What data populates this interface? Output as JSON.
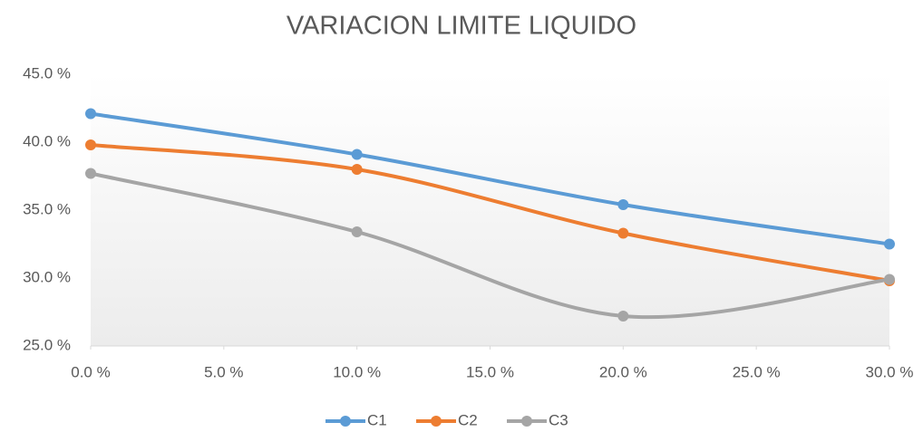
{
  "chart_data": {
    "type": "line",
    "title": "VARIACION LIMITE LIQUIDO",
    "x": [
      0,
      10,
      20,
      30
    ],
    "series": [
      {
        "name": "C1",
        "color": "#5b9bd5",
        "values": [
          42.1,
          39.1,
          35.4,
          32.5
        ]
      },
      {
        "name": "C2",
        "color": "#ed7d31",
        "values": [
          39.8,
          38.0,
          33.3,
          29.8
        ]
      },
      {
        "name": "C3",
        "color": "#a5a5a5",
        "values": [
          37.7,
          33.4,
          27.2,
          29.9
        ]
      }
    ],
    "xlim": [
      0,
      30
    ],
    "xticks": [
      {
        "value": 0,
        "label": "0.0 %"
      },
      {
        "value": 5,
        "label": "5.0 %"
      },
      {
        "value": 10,
        "label": "10.0 %"
      },
      {
        "value": 15,
        "label": "15.0 %"
      },
      {
        "value": 20,
        "label": "20.0 %"
      },
      {
        "value": 25,
        "label": "25.0 %"
      },
      {
        "value": 30,
        "label": "30.0 %"
      }
    ],
    "ylim": [
      25,
      45
    ],
    "yticks": [
      {
        "value": 25,
        "label": "25.0 %"
      },
      {
        "value": 30,
        "label": "30.0 %"
      },
      {
        "value": 35,
        "label": "35.0 %"
      },
      {
        "value": 40,
        "label": "40.0 %"
      },
      {
        "value": 45,
        "label": "45.0 %"
      }
    ],
    "smooth": true,
    "grid": false,
    "legend": "bottom"
  }
}
